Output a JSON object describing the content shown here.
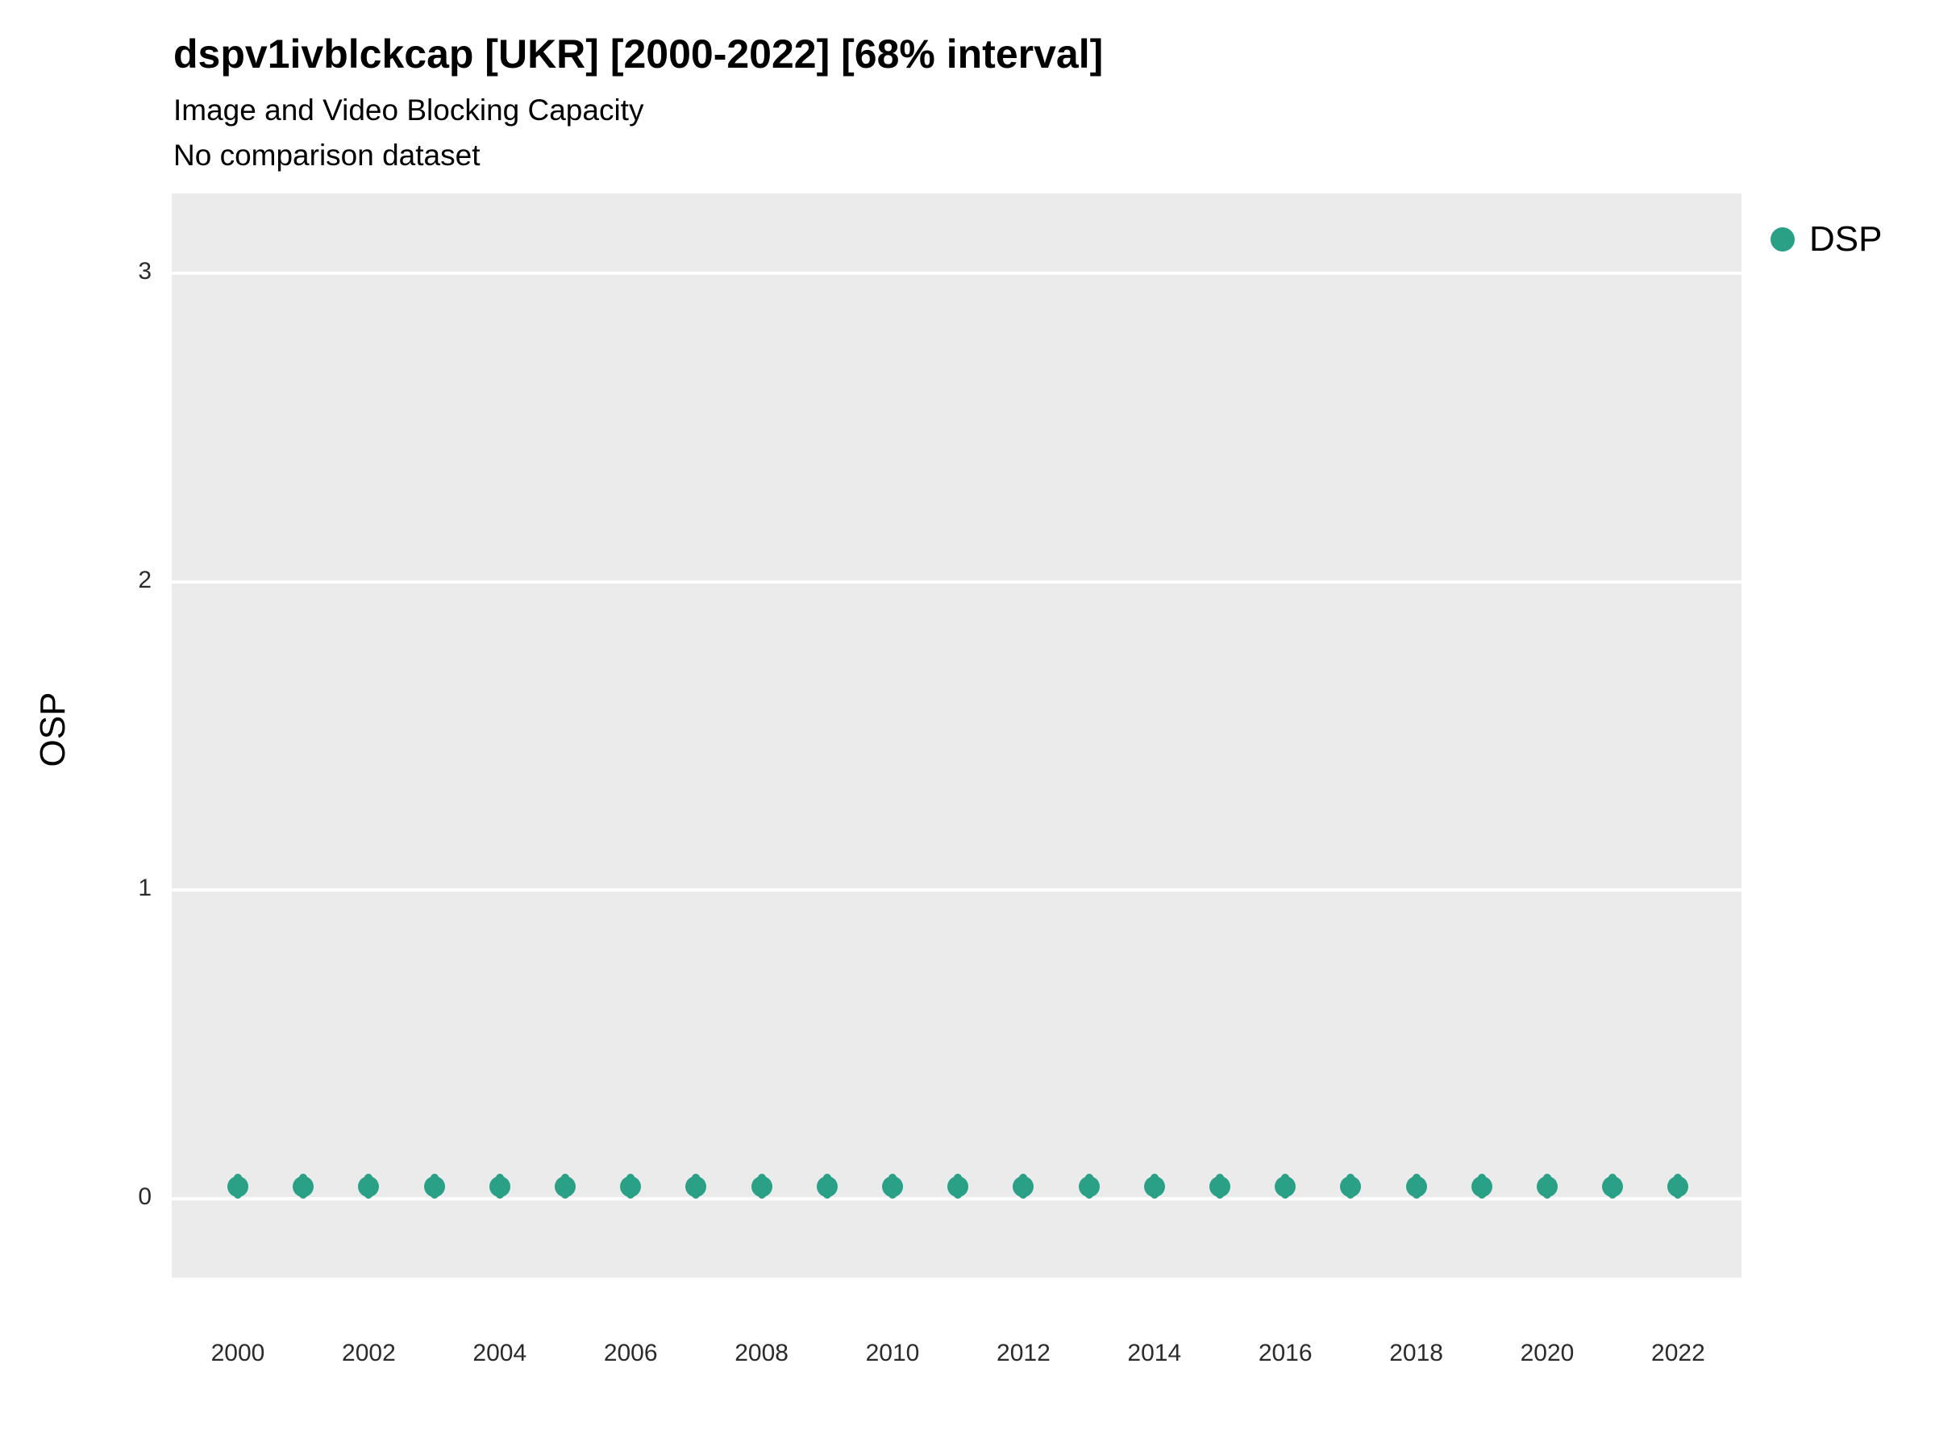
{
  "title": "dspv1ivblckcap [UKR] [2000-2022] [68% interval]",
  "subtitle": "Image and Video Blocking Capacity",
  "note": "No comparison dataset",
  "ylabel": "OSP",
  "legend": {
    "label": "DSP",
    "color": "#2AA187"
  },
  "colors": {
    "panel_bg": "#EBEBEB",
    "gridline": "#FFFFFF",
    "point": "#2AA187"
  },
  "chart_data": {
    "type": "scatter",
    "title": "dspv1ivblckcap [UKR] [2000-2022] [68% interval]",
    "subtitle": "Image and Video Blocking Capacity",
    "note": "No comparison dataset",
    "xlabel": "",
    "ylabel": "OSP",
    "legend_position": "right",
    "grid": true,
    "ylim": [
      -0.26,
      3.26
    ],
    "yticks": [
      0,
      1,
      2,
      3
    ],
    "xticks": [
      2000,
      2002,
      2004,
      2006,
      2008,
      2010,
      2012,
      2014,
      2016,
      2018,
      2020,
      2022
    ],
    "x": [
      2000,
      2001,
      2002,
      2003,
      2004,
      2005,
      2006,
      2007,
      2008,
      2009,
      2010,
      2011,
      2012,
      2013,
      2014,
      2015,
      2016,
      2017,
      2018,
      2019,
      2020,
      2021,
      2022
    ],
    "series": [
      {
        "name": "DSP",
        "values": [
          0.04,
          0.04,
          0.04,
          0.04,
          0.04,
          0.04,
          0.04,
          0.04,
          0.04,
          0.04,
          0.04,
          0.04,
          0.04,
          0.04,
          0.04,
          0.04,
          0.04,
          0.04,
          0.04,
          0.04,
          0.04,
          0.04,
          0.04
        ],
        "interval_low": [
          0.0,
          0.0,
          0.0,
          0.0,
          0.0,
          0.0,
          0.0,
          0.0,
          0.0,
          0.0,
          0.0,
          0.0,
          0.0,
          0.0,
          0.0,
          0.0,
          0.0,
          0.0,
          0.0,
          0.0,
          0.0,
          0.0,
          0.0
        ],
        "interval_high": [
          0.08,
          0.08,
          0.08,
          0.08,
          0.08,
          0.08,
          0.08,
          0.08,
          0.08,
          0.08,
          0.08,
          0.08,
          0.08,
          0.08,
          0.08,
          0.08,
          0.08,
          0.08,
          0.08,
          0.08,
          0.08,
          0.08,
          0.08
        ]
      }
    ]
  }
}
